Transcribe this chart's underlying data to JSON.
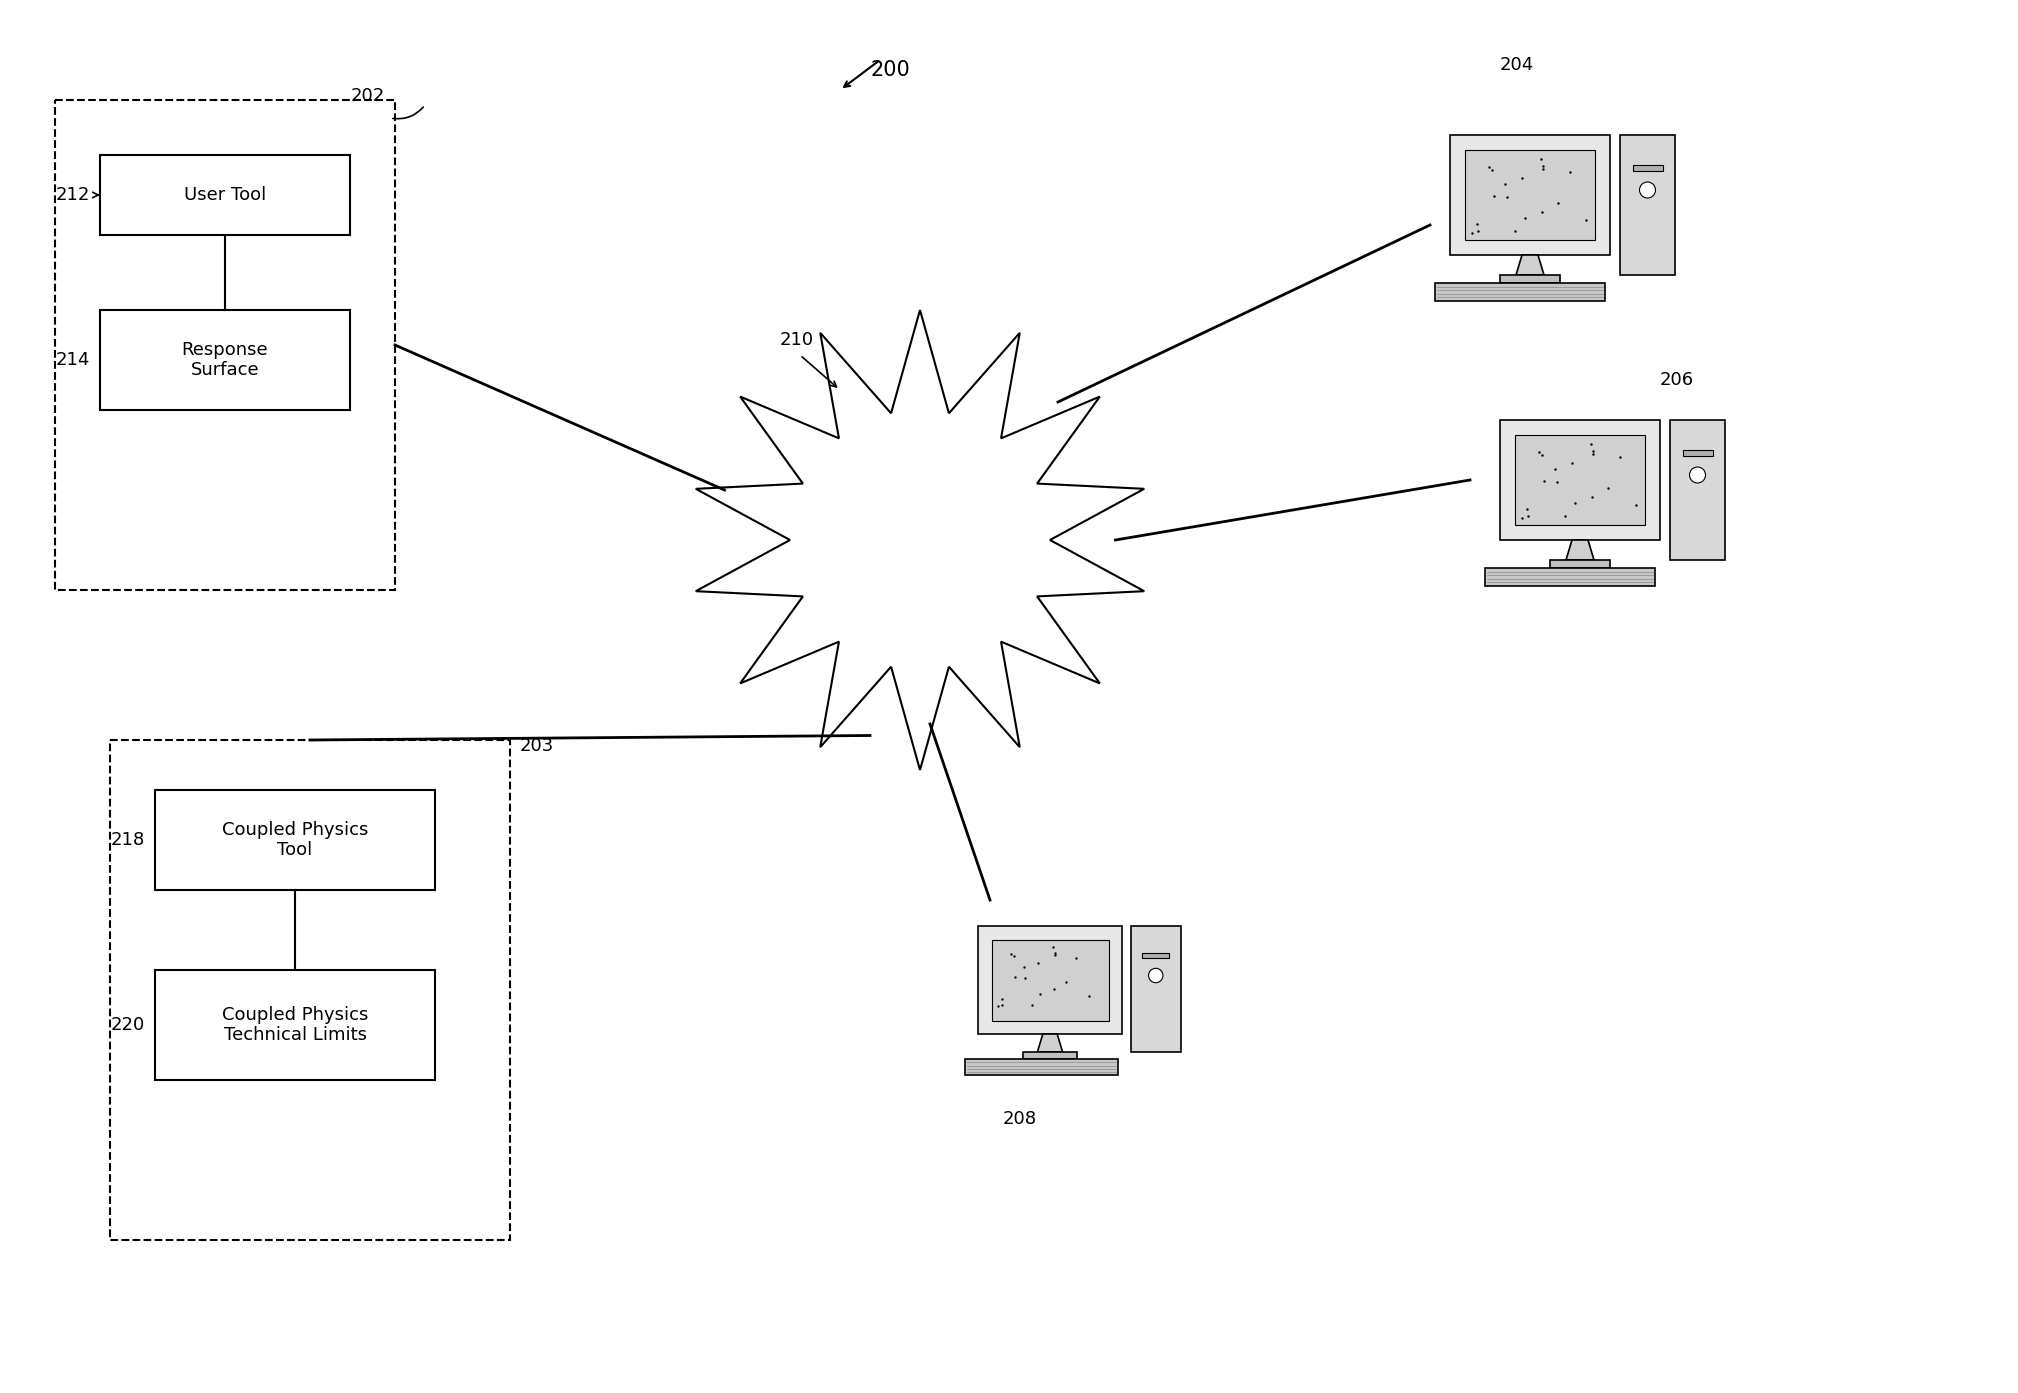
{
  "bg_color": "#ffffff",
  "label_200": "200",
  "label_202": "202",
  "label_203": "203",
  "label_204": "204",
  "label_206": "206",
  "label_208": "208",
  "label_210": "210",
  "label_212": "212",
  "label_214": "214",
  "label_218": "218",
  "label_220": "220",
  "box_212_text": "User Tool",
  "box_214_text": "Response\nSurface",
  "box_218_text": "Coupled Physics\nTool",
  "box_220_text": "Coupled Physics\nTechnical Limits",
  "font_size_labels": 13,
  "font_size_boxes": 13,
  "line_color": "#000000"
}
